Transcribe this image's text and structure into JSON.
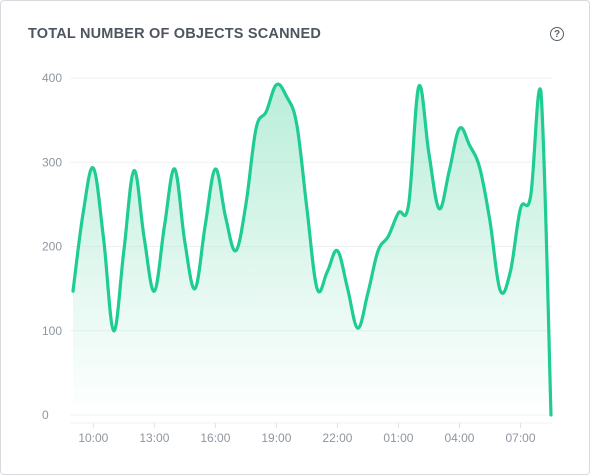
{
  "widget": {
    "title": "TOTAL NUMBER OF OBJECTS SCANNED",
    "help_icon": "question-circle-icon",
    "help_glyph": "?"
  },
  "colors": {
    "line": "#1fcc94",
    "fill_top": "#a3e8cd",
    "grid": "#eef0f3",
    "text": "#8f96a0"
  },
  "chart_data": {
    "type": "area",
    "title": "TOTAL NUMBER OF OBJECTS SCANNED",
    "xlabel": "",
    "ylabel": "",
    "ylim": [
      0,
      400
    ],
    "yticks": [
      0,
      100,
      200,
      300,
      400
    ],
    "xticks": [
      {
        "x": 1,
        "label": "10:00"
      },
      {
        "x": 4,
        "label": "13:00"
      },
      {
        "x": 7,
        "label": "16:00"
      },
      {
        "x": 10,
        "label": "19:00"
      },
      {
        "x": 13,
        "label": "22:00"
      },
      {
        "x": 16,
        "label": "01:00"
      },
      {
        "x": 19,
        "label": "04:00"
      },
      {
        "x": 22,
        "label": "07:00"
      }
    ],
    "grid": true,
    "legend": "none",
    "x": [
      0,
      0.5,
      1,
      1.5,
      2,
      2.5,
      3,
      3.5,
      4,
      4.5,
      5,
      5.5,
      6,
      6.5,
      7,
      7.5,
      8,
      8.5,
      9,
      9.5,
      10,
      10.5,
      11,
      11.5,
      12,
      12.5,
      13,
      13.5,
      14,
      14.5,
      15,
      15.5,
      16,
      16.5,
      17,
      17.5,
      18,
      18.5,
      19,
      19.5,
      20,
      20.5,
      21,
      21.5,
      22,
      22.5,
      23,
      23.5
    ],
    "values": [
      147,
      240,
      293,
      210,
      100,
      195,
      290,
      210,
      147,
      225,
      292,
      205,
      150,
      225,
      292,
      235,
      195,
      250,
      340,
      360,
      392,
      378,
      345,
      245,
      150,
      170,
      195,
      150,
      103,
      145,
      195,
      212,
      240,
      250,
      390,
      310,
      245,
      290,
      340,
      320,
      293,
      230,
      148,
      170,
      245,
      260,
      385,
      0
    ]
  }
}
